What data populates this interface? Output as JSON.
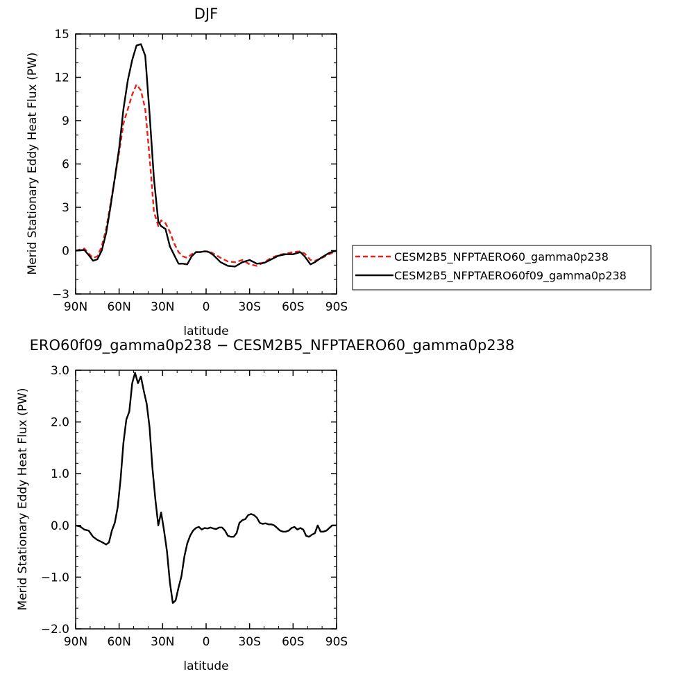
{
  "chart_data": [
    {
      "type": "line",
      "title": "DJF",
      "xlabel": "latitude",
      "ylabel": "Merid Stationary Eddy Heat Flux (PW)",
      "x_ticks": [
        "90N",
        "60N",
        "30N",
        "0",
        "30S",
        "60S",
        "90S"
      ],
      "x_tick_values": [
        90,
        60,
        30,
        0,
        -30,
        -60,
        -90
      ],
      "y_ticks": [
        "-3",
        "0",
        "3",
        "6",
        "9",
        "12",
        "15"
      ],
      "y_tick_values": [
        -3,
        0,
        3,
        6,
        9,
        12,
        15
      ],
      "xlim": [
        90,
        -90
      ],
      "ylim": [
        -3,
        15
      ],
      "x": [
        90,
        84,
        81,
        78,
        75,
        72,
        69,
        66,
        63,
        60,
        57,
        54,
        51,
        48,
        45,
        42,
        39,
        36,
        33,
        31,
        28,
        25,
        22,
        19,
        16,
        13,
        10,
        7,
        4,
        1,
        -2,
        -5,
        -10,
        -15,
        -20,
        -25,
        -30,
        -35,
        -40,
        -45,
        -50,
        -55,
        -60,
        -65,
        -68,
        -72,
        -75,
        -80,
        -85,
        -90
      ],
      "series": [
        {
          "name": "CESM2B5_NFPTAERO60_gamma0p238",
          "color": "#e8221b",
          "dash": "dashed",
          "values": [
            0.0,
            0.15,
            -0.2,
            -0.5,
            -0.4,
            0.3,
            1.5,
            3.2,
            5.0,
            6.8,
            8.8,
            9.8,
            10.8,
            11.5,
            11.1,
            9.8,
            6.5,
            2.7,
            1.7,
            2.1,
            1.9,
            1.3,
            0.5,
            -0.1,
            -0.4,
            -0.5,
            -0.25,
            -0.1,
            -0.1,
            -0.05,
            -0.05,
            -0.2,
            -0.5,
            -0.75,
            -0.8,
            -0.65,
            -0.95,
            -1.05,
            -0.8,
            -0.5,
            -0.3,
            -0.2,
            -0.1,
            -0.05,
            -0.2,
            -0.65,
            -0.7,
            -0.5,
            -0.25,
            0.0
          ]
        },
        {
          "name": "CESM2B5_NFPTAERO60f09_gamma0p238",
          "color": "#000000",
          "dash": "solid",
          "values": [
            0.0,
            0.05,
            -0.3,
            -0.7,
            -0.6,
            0.0,
            1.2,
            3.0,
            5.0,
            7.1,
            9.8,
            11.8,
            13.2,
            14.2,
            14.3,
            13.5,
            9.5,
            5.0,
            2.0,
            1.7,
            1.5,
            0.3,
            -0.3,
            -0.9,
            -0.9,
            -0.95,
            -0.4,
            -0.1,
            -0.1,
            -0.05,
            -0.1,
            -0.3,
            -0.8,
            -1.05,
            -1.1,
            -0.8,
            -0.65,
            -0.9,
            -0.85,
            -0.6,
            -0.35,
            -0.25,
            -0.25,
            -0.1,
            -0.4,
            -0.95,
            -0.8,
            -0.45,
            -0.15,
            0.0
          ]
        }
      ],
      "legend_position": "right"
    },
    {
      "type": "line",
      "title": "ERO60f09_gamma0p238 − CESM2B5_NFPTAERO60_gamma0p238",
      "xlabel": "latitude",
      "ylabel": "Merid Stationary Eddy Heat Flux (PW)",
      "x_ticks": [
        "90N",
        "60N",
        "30N",
        "0",
        "30S",
        "60S",
        "90S"
      ],
      "x_tick_values": [
        90,
        60,
        30,
        0,
        -30,
        -60,
        -90
      ],
      "y_ticks": [
        "-2.0",
        "-1.0",
        "0.0",
        "1.0",
        "2.0",
        "3.0"
      ],
      "y_tick_values": [
        -2,
        -1,
        0,
        1,
        2,
        3
      ],
      "xlim": [
        90,
        -90
      ],
      "ylim": [
        -2,
        3
      ],
      "x": [
        90,
        87,
        84,
        81,
        78,
        75,
        72,
        69,
        67,
        65,
        63,
        61,
        59,
        57,
        55,
        53,
        51,
        49,
        47,
        45,
        43,
        41,
        39,
        37,
        35,
        33,
        31,
        29,
        27,
        25,
        23,
        21,
        19,
        17,
        15,
        13,
        11,
        9,
        7,
        5,
        3,
        1,
        -1,
        -3,
        -5,
        -7,
        -9,
        -11,
        -13,
        -15,
        -17,
        -19,
        -21,
        -23,
        -25,
        -27,
        -29,
        -31,
        -33,
        -35,
        -37,
        -39,
        -41,
        -43,
        -45,
        -47,
        -49,
        -51,
        -53,
        -55,
        -57,
        -59,
        -61,
        -63,
        -65,
        -67,
        -69,
        -71,
        -73,
        -75,
        -77,
        -79,
        -81,
        -83,
        -85,
        -87,
        -90
      ],
      "series": [
        {
          "name": "",
          "color": "#000000",
          "dash": "solid",
          "values": [
            0.0,
            -0.02,
            -0.08,
            -0.1,
            -0.22,
            -0.28,
            -0.32,
            -0.37,
            -0.33,
            -0.1,
            0.05,
            0.35,
            0.9,
            1.6,
            2.05,
            2.2,
            2.75,
            2.95,
            2.75,
            2.88,
            2.6,
            2.35,
            1.9,
            1.1,
            0.5,
            0.0,
            0.25,
            -0.1,
            -0.5,
            -1.1,
            -1.5,
            -1.45,
            -1.2,
            -0.98,
            -0.6,
            -0.35,
            -0.2,
            -0.1,
            -0.05,
            -0.03,
            -0.08,
            -0.05,
            -0.06,
            -0.04,
            -0.06,
            -0.07,
            -0.04,
            -0.04,
            -0.1,
            -0.2,
            -0.22,
            -0.22,
            -0.15,
            0.05,
            0.1,
            0.12,
            0.2,
            0.22,
            0.2,
            0.15,
            0.05,
            0.03,
            0.04,
            0.02,
            0.02,
            0.0,
            -0.05,
            -0.1,
            -0.12,
            -0.12,
            -0.1,
            -0.05,
            -0.03,
            -0.08,
            -0.05,
            -0.08,
            -0.2,
            -0.22,
            -0.18,
            -0.15,
            0.0,
            -0.12,
            -0.12,
            -0.1,
            -0.05,
            0.0,
            0.0
          ]
        }
      ]
    }
  ]
}
